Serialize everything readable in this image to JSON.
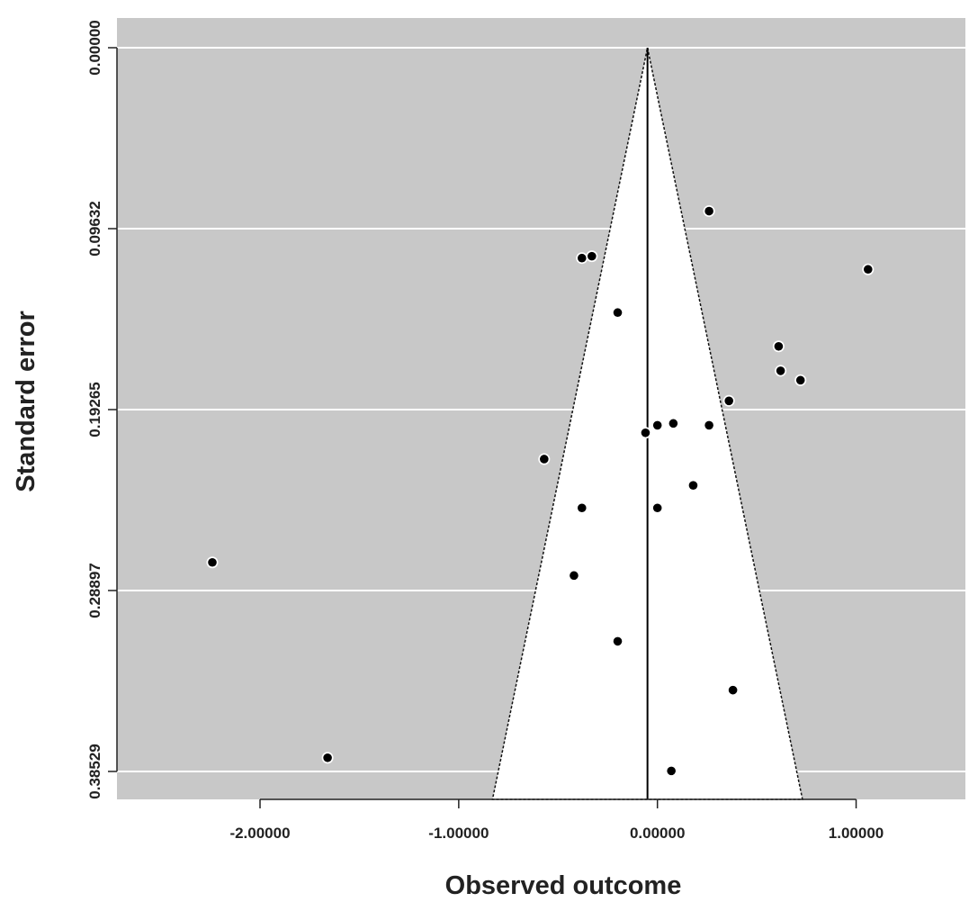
{
  "chart_data": {
    "type": "scatter",
    "subtype": "funnel-plot",
    "title": "",
    "xlabel": "Observed outcome",
    "ylabel": "Standard error",
    "xlim": [
      -2.72,
      1.55
    ],
    "ylim": [
      0.0,
      0.3853
    ],
    "y_reversed": true,
    "x_ticks": [
      -2.0,
      -1.0,
      0.0,
      1.0
    ],
    "x_tick_labels": [
      "-2.00000",
      "-1.00000",
      "0.00000",
      "1.00000"
    ],
    "y_ticks": [
      0.0,
      0.09632,
      0.19265,
      0.28897,
      0.38529
    ],
    "y_tick_labels": [
      "0.00000",
      "0.09632",
      "0.19265",
      "0.28897",
      "0.38529"
    ],
    "grid": true,
    "summary_estimate": -0.05,
    "funnel_bottom_x": [
      -0.83,
      0.73
    ],
    "colors": {
      "panel": "#c8c8c8",
      "funnel": "#ffffff",
      "grid": "#ffffff",
      "points": "#000000"
    },
    "points": [
      {
        "x": 0.26,
        "y": 0.087
      },
      {
        "x": -0.38,
        "y": 0.112
      },
      {
        "x": -0.33,
        "y": 0.111
      },
      {
        "x": 1.06,
        "y": 0.118
      },
      {
        "x": -0.2,
        "y": 0.141
      },
      {
        "x": 0.61,
        "y": 0.159
      },
      {
        "x": 0.62,
        "y": 0.172
      },
      {
        "x": 0.72,
        "y": 0.177
      },
      {
        "x": 0.36,
        "y": 0.188
      },
      {
        "x": 0.08,
        "y": 0.2
      },
      {
        "x": 0.0,
        "y": 0.201
      },
      {
        "x": 0.26,
        "y": 0.201
      },
      {
        "x": -0.06,
        "y": 0.205
      },
      {
        "x": -0.57,
        "y": 0.219
      },
      {
        "x": 0.18,
        "y": 0.233
      },
      {
        "x": -0.38,
        "y": 0.245
      },
      {
        "x": 0.0,
        "y": 0.245
      },
      {
        "x": -2.24,
        "y": 0.274
      },
      {
        "x": -0.42,
        "y": 0.281
      },
      {
        "x": -0.2,
        "y": 0.316
      },
      {
        "x": 0.38,
        "y": 0.342
      },
      {
        "x": -1.66,
        "y": 0.378
      },
      {
        "x": 0.07,
        "y": 0.385
      }
    ]
  }
}
